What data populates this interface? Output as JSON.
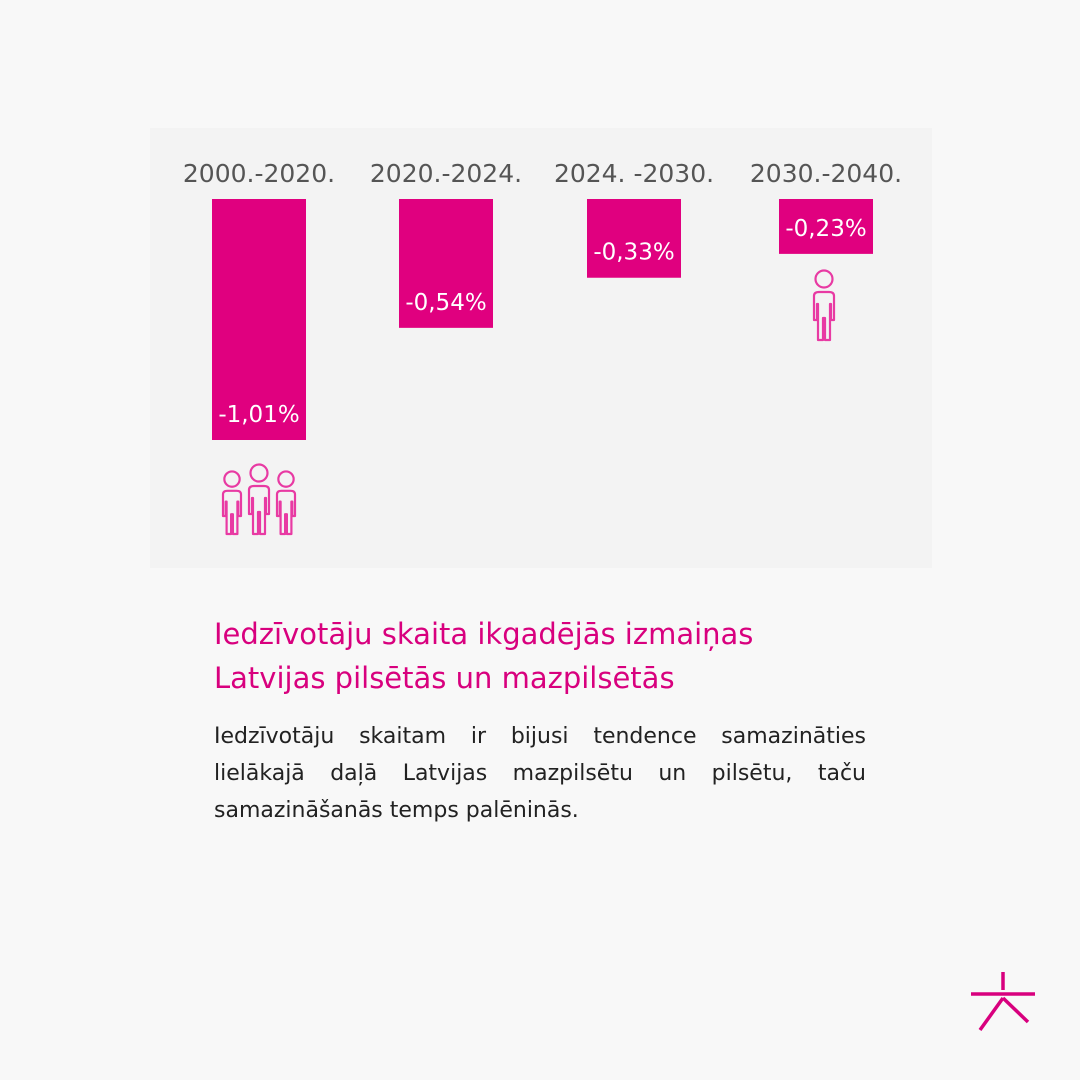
{
  "chart_data": {
    "type": "bar",
    "categories": [
      "2000.-2020.",
      "2020.-2024.",
      "2024. -2030.",
      "2030.-2040."
    ],
    "values": [
      -1.01,
      -0.54,
      -0.33,
      -0.23
    ],
    "value_labels": [
      "-1,01%",
      "-0,54%",
      "-0,33%",
      "-0,23%"
    ],
    "title": "Iedzīvotāju skaita ikgadējās izmaiņas Latvijas pilsētās un mazpilsētās",
    "xlabel": "",
    "ylabel": "",
    "ylim": [
      -1.01,
      0
    ],
    "grid": false,
    "legend": "none",
    "bar_color": "#e0007f",
    "icons": [
      "people-group-icon",
      "person-icon"
    ]
  },
  "headline": {
    "line1": "Iedzīvotāju skaita ikgadējās izmaiņas",
    "line2": "Latvijas pilsētās un mazpilsētās"
  },
  "body": {
    "text": "Iedzīvotāju skaitam ir bijusi tendence samazināties lielākajā daļā Latvijas mazpilsētu un pilsētu, taču samazināšanās temps palēninās."
  },
  "colors": {
    "accent": "#d8007e",
    "bar": "#e0007f",
    "icon": "#e83aa3",
    "background": "#f8f8f8"
  },
  "logo": {
    "icon": "brand-logo-icon"
  }
}
